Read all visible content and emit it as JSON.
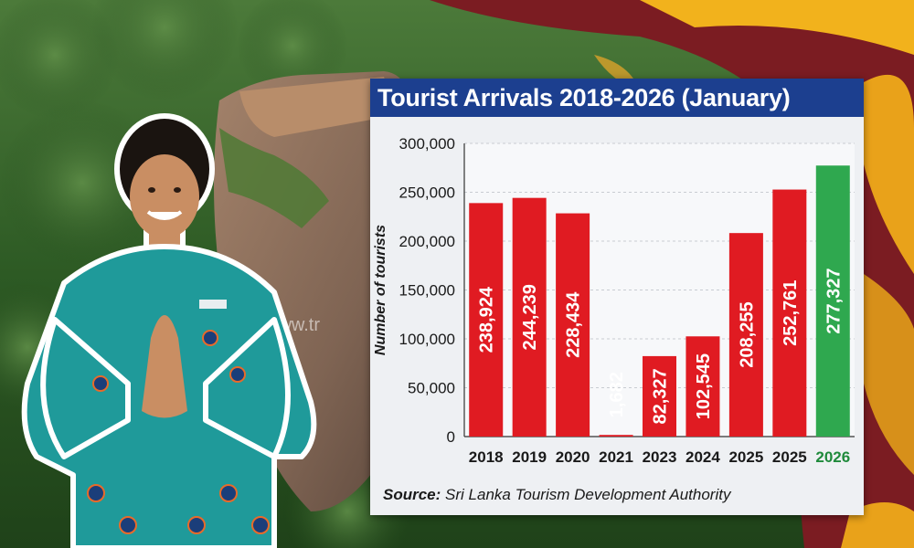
{
  "chart_data": {
    "type": "bar",
    "title": "Tourist Arrivals 2018-2026 (January)",
    "ylabel": "Number of tourists",
    "xlabel": "",
    "categories": [
      "2018",
      "2019",
      "2020",
      "2021",
      "2023",
      "2024",
      "2025",
      "2025",
      "2026"
    ],
    "values": [
      238924,
      244239,
      228434,
      1682,
      82327,
      102545,
      208255,
      252761,
      277327
    ],
    "value_labels": [
      "238,924",
      "244,239",
      "228,434",
      "1,682",
      "82,327",
      "102,545",
      "208,255",
      "252,761",
      "277,327"
    ],
    "highlight_index": 8,
    "ylim": [
      0,
      300000
    ],
    "yticks": [
      0,
      50000,
      100000,
      150000,
      200000,
      250000,
      300000
    ],
    "ytick_labels": [
      "0",
      "50,000",
      "100,000",
      "150,000",
      "200,000",
      "250,000",
      "300,000"
    ],
    "grid": true,
    "colors": {
      "bar": "#e01b22",
      "highlight": "#2fa84f",
      "highlight_label": "#1f8a3b",
      "title_bg": "#1c3f8f"
    }
  },
  "source": {
    "label": "Source:",
    "text": "Sri Lanka Tourism Development Authority"
  },
  "background": {
    "watermark": "www.tr"
  }
}
